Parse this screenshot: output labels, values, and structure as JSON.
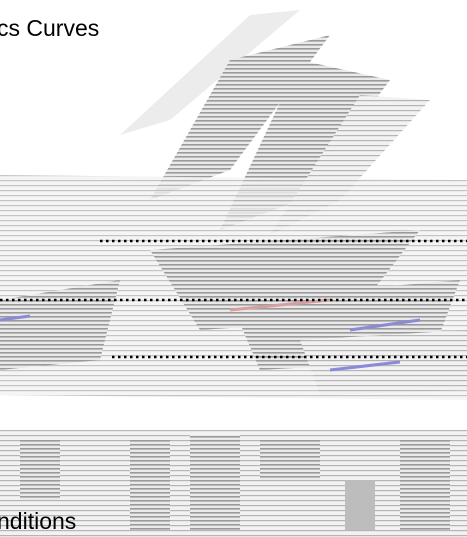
{
  "header": {
    "title": "cs Curves"
  },
  "footer": {
    "text": "nditions"
  }
}
